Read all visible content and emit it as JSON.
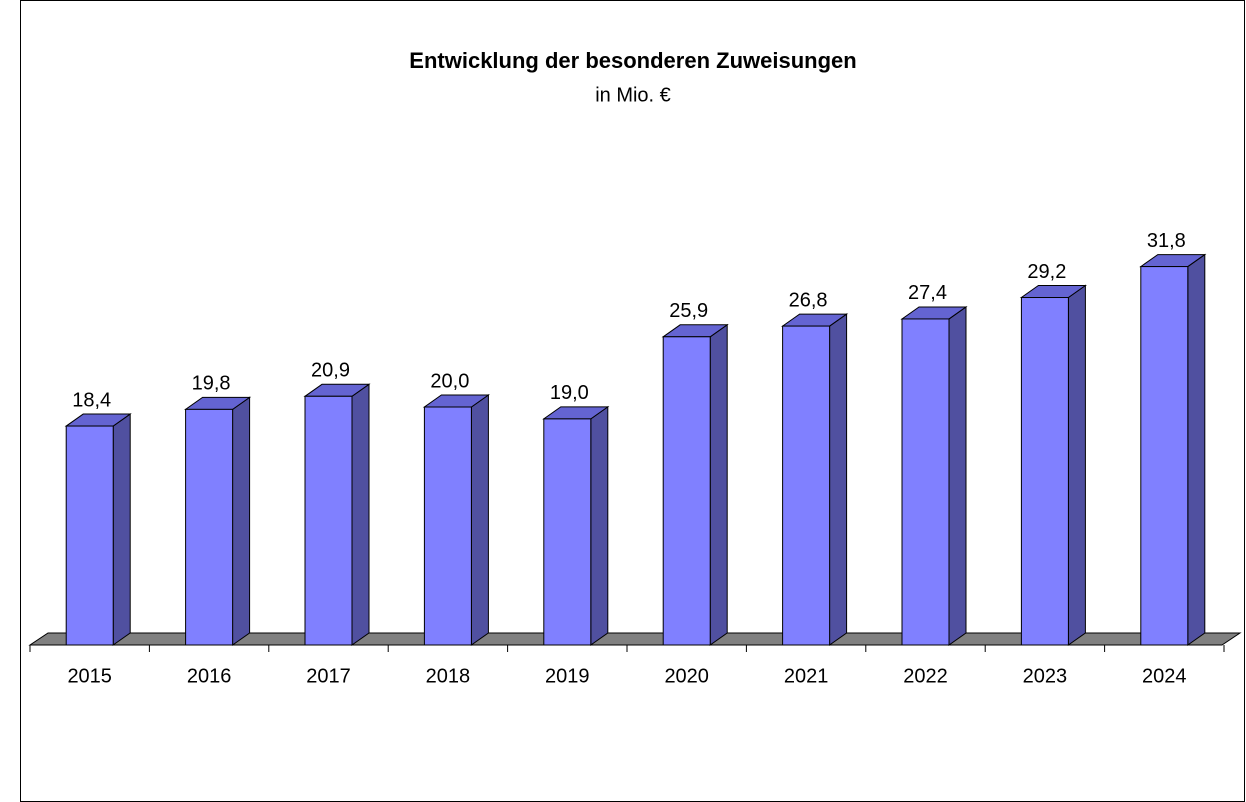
{
  "chart_data": {
    "type": "bar3d",
    "title": "Entwicklung der besonderen Zuweisungen",
    "subtitle": "in Mio. €",
    "categories": [
      "2015",
      "2016",
      "2017",
      "2018",
      "2019",
      "2020",
      "2021",
      "2022",
      "2023",
      "2024"
    ],
    "values": [
      18.4,
      19.8,
      20.9,
      20.0,
      19.0,
      25.9,
      26.8,
      27.4,
      29.2,
      31.8
    ],
    "value_labels": [
      "18,4",
      "19,8",
      "20,9",
      "20,0",
      "19,0",
      "25,9",
      "26,8",
      "27,4",
      "29,2",
      "31,8"
    ],
    "color": "#8080ff"
  }
}
